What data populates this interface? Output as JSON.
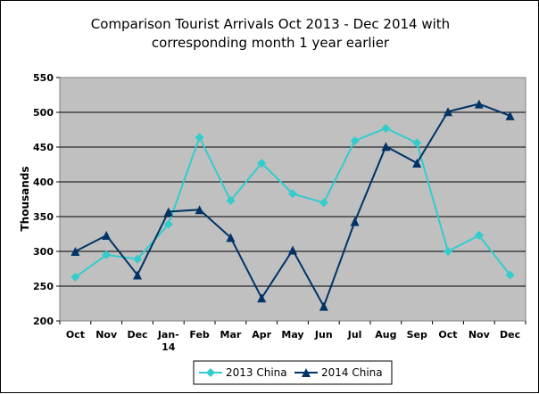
{
  "chart_data": {
    "type": "line",
    "title": [
      "Comparison Tourist Arrivals Oct 2013 - Dec 2014 with",
      "corresponding month 1 year earlier"
    ],
    "xlabel": "",
    "ylabel": "Thousands",
    "categories": [
      "Oct",
      "Nov",
      "Dec",
      "Jan-14",
      "Feb",
      "Mar",
      "Apr",
      "May",
      "Jun",
      "Jul",
      "Aug",
      "Sep",
      "Oct",
      "Nov",
      "Dec"
    ],
    "ylim": [
      200,
      550
    ],
    "yticks": [
      200,
      250,
      300,
      350,
      400,
      450,
      500,
      550
    ],
    "grid": true,
    "legend_position": "bottom",
    "series": [
      {
        "name": "2013 China",
        "color": "#33CCCC",
        "marker": "diamond",
        "values": [
          263,
          295,
          289,
          339,
          464,
          373,
          427,
          383,
          370,
          459,
          477,
          456,
          300,
          323,
          266
        ]
      },
      {
        "name": "2014 China",
        "color": "#003366",
        "marker": "triangle",
        "values": [
          300,
          323,
          266,
          357,
          360,
          320,
          233,
          302,
          221,
          343,
          451,
          427,
          501,
          512,
          495
        ]
      }
    ]
  }
}
